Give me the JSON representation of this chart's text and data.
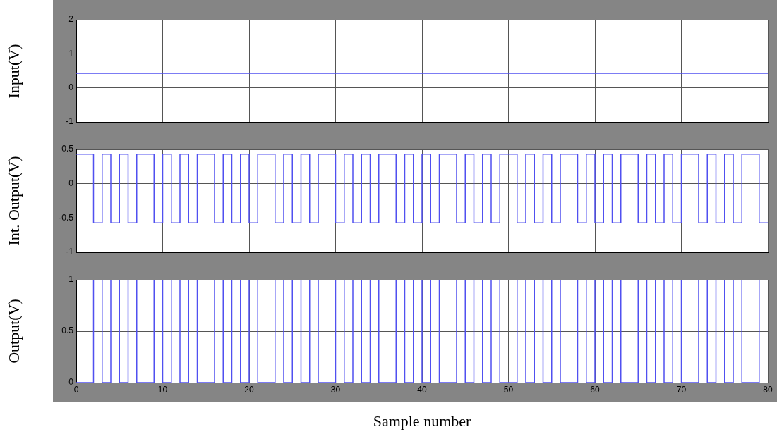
{
  "chart_data": [
    {
      "type": "line",
      "ylabel": "Input(V)",
      "x": [
        0,
        80
      ],
      "series": [
        {
          "color": "#5050f0",
          "values": [
            0.43,
            0.43
          ]
        }
      ],
      "xlim": [
        0,
        80
      ],
      "xticks": [
        0,
        10,
        20,
        30,
        40,
        50,
        60,
        70,
        80
      ],
      "ylim": [
        -1,
        2
      ],
      "yticks": [
        -1,
        0,
        1,
        2
      ],
      "grid": true,
      "tick_labels": "y"
    },
    {
      "type": "step",
      "ylabel": "Int. Output(V)",
      "x": [
        0,
        1,
        2,
        3,
        4,
        5,
        6,
        7,
        8,
        9,
        10,
        11,
        12,
        13,
        14,
        15,
        16,
        17,
        18,
        19,
        20,
        21,
        22,
        23,
        24,
        25,
        26,
        27,
        28,
        29,
        30,
        31,
        32,
        33,
        34,
        35,
        36,
        37,
        38,
        39,
        40,
        41,
        42,
        43,
        44,
        45,
        46,
        47,
        48,
        49,
        50,
        51,
        52,
        53,
        54,
        55,
        56,
        57,
        58,
        59,
        60,
        61,
        62,
        63,
        64,
        65,
        66,
        67,
        68,
        69,
        70,
        71,
        72,
        73,
        74,
        75,
        76,
        77,
        78,
        79,
        80
      ],
      "series": [
        {
          "color": "#5050f0",
          "values": [
            0.43,
            0.43,
            -0.57,
            0.43,
            -0.57,
            0.43,
            -0.57,
            0.43,
            0.43,
            -0.57,
            0.43,
            -0.57,
            0.43,
            -0.57,
            0.43,
            0.43,
            -0.57,
            0.43,
            -0.57,
            0.43,
            -0.57,
            0.43,
            0.43,
            -0.57,
            0.43,
            -0.57,
            0.43,
            -0.57,
            0.43,
            0.43,
            -0.57,
            0.43,
            -0.57,
            0.43,
            -0.57,
            0.43,
            0.43,
            -0.57,
            0.43,
            -0.57,
            0.43,
            -0.57,
            0.43,
            0.43,
            -0.57,
            0.43,
            -0.57,
            0.43,
            -0.57,
            0.43,
            0.43,
            -0.57,
            0.43,
            -0.57,
            0.43,
            -0.57,
            0.43,
            0.43,
            -0.57,
            0.43,
            -0.57,
            0.43,
            -0.57,
            0.43,
            0.43,
            -0.57,
            0.43,
            -0.57,
            0.43,
            -0.57,
            0.43,
            0.43,
            -0.57,
            0.43,
            -0.57,
            0.43,
            -0.57,
            0.43,
            0.43,
            -0.57,
            -0.57
          ]
        }
      ],
      "xlim": [
        0,
        80
      ],
      "xticks": [
        0,
        10,
        20,
        30,
        40,
        50,
        60,
        70,
        80
      ],
      "ylim": [
        -1,
        0.5
      ],
      "yticks": [
        -1,
        -0.5,
        0,
        0.5
      ],
      "grid": true,
      "tick_labels": "y"
    },
    {
      "type": "step",
      "ylabel": "Output(V)",
      "xlabel": "Sample number",
      "x": [
        0,
        1,
        2,
        3,
        4,
        5,
        6,
        7,
        8,
        9,
        10,
        11,
        12,
        13,
        14,
        15,
        16,
        17,
        18,
        19,
        20,
        21,
        22,
        23,
        24,
        25,
        26,
        27,
        28,
        29,
        30,
        31,
        32,
        33,
        34,
        35,
        36,
        37,
        38,
        39,
        40,
        41,
        42,
        43,
        44,
        45,
        46,
        47,
        48,
        49,
        50,
        51,
        52,
        53,
        54,
        55,
        56,
        57,
        58,
        59,
        60,
        61,
        62,
        63,
        64,
        65,
        66,
        67,
        68,
        69,
        70,
        71,
        72,
        73,
        74,
        75,
        76,
        77,
        78,
        79,
        80
      ],
      "series": [
        {
          "color": "#5050f0",
          "values": [
            0,
            0,
            1,
            0,
            1,
            0,
            1,
            0,
            0,
            1,
            0,
            1,
            0,
            1,
            0,
            0,
            1,
            0,
            1,
            0,
            1,
            0,
            0,
            1,
            0,
            1,
            0,
            1,
            0,
            0,
            1,
            0,
            1,
            0,
            1,
            0,
            0,
            1,
            0,
            1,
            0,
            1,
            0,
            0,
            1,
            0,
            1,
            0,
            1,
            0,
            0,
            1,
            0,
            1,
            0,
            1,
            0,
            0,
            1,
            0,
            1,
            0,
            1,
            0,
            0,
            1,
            0,
            1,
            0,
            1,
            0,
            0,
            1,
            0,
            1,
            0,
            1,
            0,
            0,
            1,
            1
          ]
        }
      ],
      "xlim": [
        0,
        80
      ],
      "xticks": [
        0,
        10,
        20,
        30,
        40,
        50,
        60,
        70,
        80
      ],
      "ylim": [
        0,
        1
      ],
      "yticks": [
        0,
        0.5,
        1
      ],
      "grid": true
    }
  ]
}
